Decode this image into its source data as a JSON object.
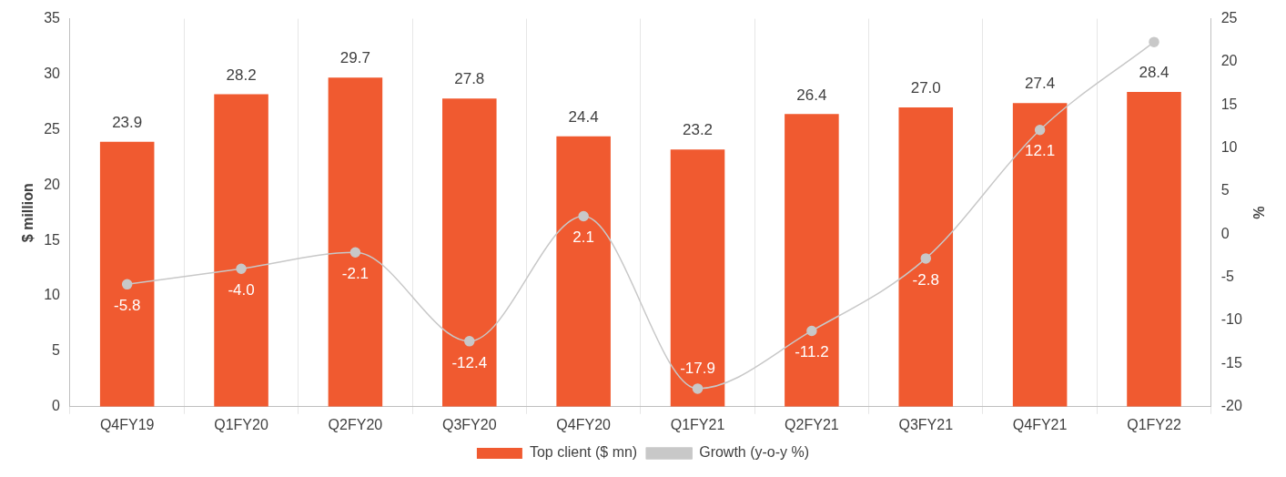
{
  "chart_data": {
    "type": "bar",
    "categories": [
      "Q4FY19",
      "Q1FY20",
      "Q2FY20",
      "Q3FY20",
      "Q4FY20",
      "Q1FY21",
      "Q2FY21",
      "Q3FY21",
      "Q4FY21",
      "Q1FY22"
    ],
    "series": [
      {
        "name": "Top client ($ mn)",
        "color": "#f05a30",
        "values": [
          23.9,
          28.2,
          29.7,
          27.8,
          24.4,
          23.2,
          26.4,
          27.0,
          27.4,
          28.4
        ],
        "value_labels": [
          "23.9",
          "28.2",
          "29.7",
          "27.8",
          "24.4",
          "23.2",
          "26.4",
          "27.0",
          "27.4",
          "28.4"
        ]
      },
      {
        "name": "Growth (y-o-y %)",
        "type": "line",
        "axis": "y2",
        "color": "#c8c8c8",
        "marker": "circle",
        "values": [
          -5.8,
          -4.0,
          -2.1,
          -12.4,
          2.1,
          -17.9,
          -11.2,
          -2.8,
          12.1,
          22.3
        ],
        "value_labels": [
          "-5.8",
          "-4.0",
          "-2.1",
          "-12.4",
          "2.1",
          "-17.9",
          "-11.2",
          "-2.8",
          "12.1",
          null
        ]
      }
    ],
    "ylabel": "$ million",
    "y2label": "%",
    "ylim": [
      0,
      35
    ],
    "yticks": [
      0,
      5,
      10,
      15,
      20,
      25,
      30,
      35
    ],
    "y2lim": [
      -20,
      25
    ],
    "y2ticks": [
      -20,
      -15,
      -10,
      -5,
      0,
      5,
      10,
      15,
      20,
      25
    ],
    "grid": "x",
    "legend": "bottom"
  }
}
